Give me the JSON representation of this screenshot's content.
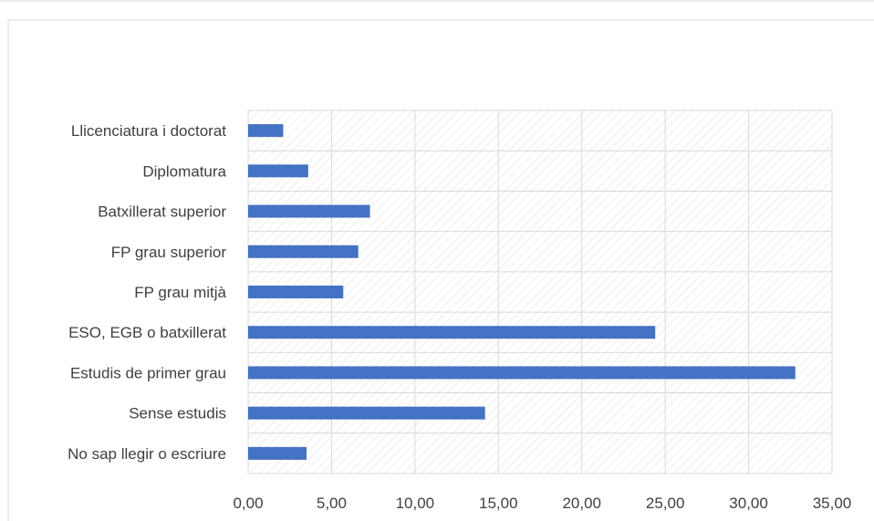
{
  "chart_data": {
    "type": "bar",
    "orientation": "horizontal",
    "title": "",
    "xlabel": "",
    "ylabel": "",
    "categories": [
      "No sap llegir o escriure",
      "Sense estudis",
      "Estudis de primer grau",
      "ESO, EGB o batxillerat",
      "FP grau mitjà",
      "FP grau superior",
      "Batxillerat superior",
      "Diplomatura",
      "Llicenciatura i doctorat"
    ],
    "values": [
      3.5,
      14.2,
      32.8,
      24.4,
      5.7,
      6.6,
      7.3,
      3.6,
      2.1
    ],
    "xlim": [
      0,
      35
    ],
    "x_ticks": [
      "0,00",
      "5,00",
      "10,00",
      "15,00",
      "20,00",
      "25,00",
      "30,00",
      "35,00"
    ],
    "grid": true,
    "legend": "none",
    "colors": {
      "bar": "#4472c4",
      "grid": "#d9d9d9",
      "hatch": "#e3e3e3",
      "frame_border": "#d9d9d9",
      "text": "#404040"
    }
  }
}
